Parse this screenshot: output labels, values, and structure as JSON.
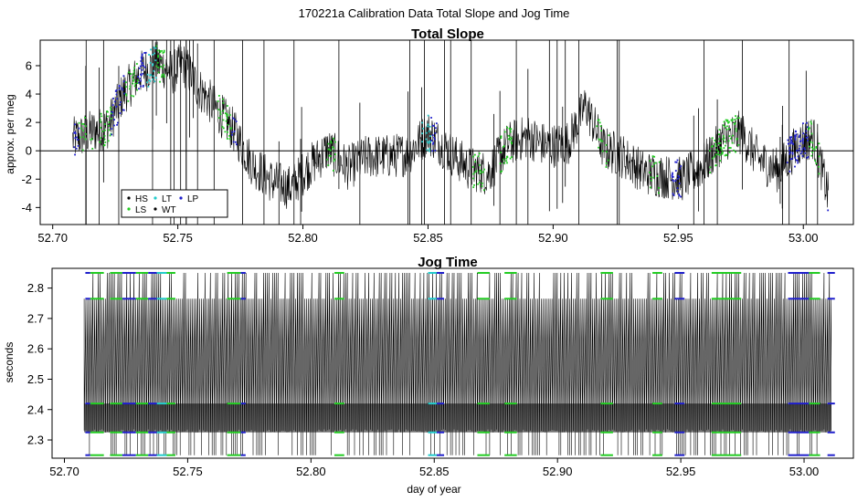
{
  "figure": {
    "main_title": "170221a   Calibration Data Total Slope and Jog Time",
    "xlabel": "day of year"
  },
  "colors": {
    "HS": "#000000",
    "LS": "#22cc22",
    "LT": "#22cccc",
    "WT": "#000000",
    "LP": "#1f1fcc",
    "trace": "#000000"
  },
  "legend": {
    "entries": [
      {
        "key": "HS",
        "label": "HS",
        "color": "#000000"
      },
      {
        "key": "LS",
        "label": "LS",
        "color": "#22cc22"
      },
      {
        "key": "LT",
        "label": "LT",
        "color": "#22cccc"
      },
      {
        "key": "WT",
        "label": "WT",
        "color": "#000000"
      },
      {
        "key": "LP",
        "label": "LP",
        "color": "#1f1fcc"
      }
    ]
  },
  "chart_data": [
    {
      "type": "line",
      "title": "Total Slope",
      "xlabel": "",
      "ylabel": "approx. per meg",
      "xlim": [
        52.695,
        53.02
      ],
      "ylim": [
        -5.2,
        7.8
      ],
      "xticks": [
        52.7,
        52.75,
        52.8,
        52.85,
        52.9,
        52.95,
        53.0
      ],
      "xtick_labels": [
        "52.70",
        "52.75",
        "52.80",
        "52.85",
        "52.90",
        "52.95",
        "53.00"
      ],
      "yticks": [
        -4,
        -2,
        0,
        2,
        4,
        6
      ],
      "ytick_labels": [
        "-4",
        "-2",
        "0",
        "2",
        "4",
        "6"
      ],
      "hline": 0,
      "grid": false,
      "legend_position": "bottom-left",
      "series_points": {
        "x": [
          52.708,
          52.715,
          52.722,
          52.728,
          52.735,
          52.742,
          52.748,
          52.752,
          52.758,
          52.765,
          52.772,
          52.78,
          52.788,
          52.795,
          52.802,
          52.81,
          52.818,
          52.826,
          52.834,
          52.842,
          52.85,
          52.858,
          52.866,
          52.874,
          52.882,
          52.89,
          52.898,
          52.906,
          52.913,
          52.92,
          52.928,
          52.936,
          52.944,
          52.952,
          52.96,
          52.968,
          52.975,
          52.982,
          52.99,
          52.998,
          53.004,
          53.01
        ],
        "y": [
          0.8,
          1.3,
          1.7,
          4.0,
          5.5,
          6.2,
          5.5,
          6.2,
          4.5,
          3.0,
          1.5,
          -1.0,
          -2.2,
          -2.6,
          -1.2,
          0.1,
          -1.2,
          -0.4,
          -0.4,
          -0.2,
          1.3,
          0.0,
          -1.2,
          -1.6,
          0.5,
          1.0,
          0.3,
          0.6,
          3.2,
          0.2,
          -0.4,
          -1.5,
          -1.8,
          -2.0,
          -1.0,
          0.8,
          1.3,
          -0.6,
          -1.4,
          0.5,
          1.0,
          -3.2
        ]
      },
      "category_segments": [
        {
          "category": "LP",
          "x_start": 52.7085,
          "x_end": 52.7105
        },
        {
          "category": "LS",
          "x_start": 52.7105,
          "x_end": 52.716
        },
        {
          "category": "LS",
          "x_start": 52.7185,
          "x_end": 52.7235
        },
        {
          "category": "LP",
          "x_start": 52.7235,
          "x_end": 52.729
        },
        {
          "category": "LS",
          "x_start": 52.729,
          "x_end": 52.734
        },
        {
          "category": "LP",
          "x_start": 52.734,
          "x_end": 52.7375
        },
        {
          "category": "LT",
          "x_start": 52.7375,
          "x_end": 52.7415
        },
        {
          "category": "LS",
          "x_start": 52.7415,
          "x_end": 52.745
        },
        {
          "category": "LS",
          "x_start": 52.766,
          "x_end": 52.7715
        },
        {
          "category": "LP",
          "x_start": 52.7715,
          "x_end": 52.7735
        },
        {
          "category": "LS",
          "x_start": 52.8095,
          "x_end": 52.8135
        },
        {
          "category": "LT",
          "x_start": 52.8475,
          "x_end": 52.851
        },
        {
          "category": "LP",
          "x_start": 52.851,
          "x_end": 52.854
        },
        {
          "category": "LS",
          "x_start": 52.8675,
          "x_end": 52.8725
        },
        {
          "category": "LS",
          "x_start": 52.8785,
          "x_end": 52.8835
        },
        {
          "category": "LS",
          "x_start": 52.9175,
          "x_end": 52.9225
        },
        {
          "category": "LS",
          "x_start": 52.9385,
          "x_end": 52.9425
        },
        {
          "category": "LP",
          "x_start": 52.9475,
          "x_end": 52.9515
        },
        {
          "category": "LS",
          "x_start": 52.9625,
          "x_end": 52.9745
        },
        {
          "category": "LP",
          "x_start": 52.9935,
          "x_end": 53.002
        },
        {
          "category": "LS",
          "x_start": 53.002,
          "x_end": 53.0065
        },
        {
          "category": "LP",
          "x_start": 53.0095,
          "x_end": 53.0125
        }
      ]
    },
    {
      "type": "line",
      "title": "Jog Time",
      "xlabel": "day of year",
      "ylabel": "seconds",
      "xlim": [
        52.695,
        53.02
      ],
      "ylim": [
        2.24,
        2.865
      ],
      "xticks": [
        52.7,
        52.75,
        52.8,
        52.85,
        52.9,
        52.95,
        53.0
      ],
      "xtick_labels": [
        "52.70",
        "52.75",
        "52.80",
        "52.85",
        "52.90",
        "52.95",
        "53.00"
      ],
      "yticks": [
        2.3,
        2.4,
        2.5,
        2.6,
        2.7,
        2.8
      ],
      "ytick_labels": [
        "2.3",
        "2.4",
        "2.5",
        "2.6",
        "2.7",
        "2.8"
      ],
      "grid": false,
      "value_levels": {
        "high": [
          2.85,
          2.765
        ],
        "band_upper": [
          2.395,
          2.42
        ],
        "band_lower": [
          2.325,
          2.335
        ],
        "bottom": [
          2.25,
          2.29
        ],
        "x_range": [
          52.708,
          53.011
        ]
      }
    }
  ]
}
